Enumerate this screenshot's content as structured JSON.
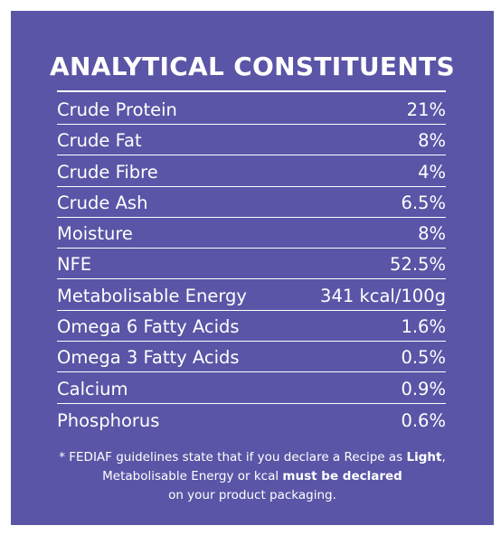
{
  "title": "ANALYTICAL CONSTITUENTS",
  "rows": [
    {
      "label": "Crude Protein",
      "value": "21%"
    },
    {
      "label": "Crude Fat",
      "value": "8%"
    },
    {
      "label": "Crude Fibre",
      "value": "4%"
    },
    {
      "label": "Crude Ash",
      "value": "6.5%"
    },
    {
      "label": "Moisture",
      "value": "8%"
    },
    {
      "label": "NFE",
      "value": "52.5%"
    },
    {
      "label": "Metabolisable Energy",
      "value": "341 kcal/100g"
    },
    {
      "label": "Omega 6 Fatty Acids",
      "value": "1.6%"
    },
    {
      "label": "Omega 3 Fatty Acids",
      "value": "0.5%"
    },
    {
      "label": "Calcium",
      "value": "0.9%"
    },
    {
      "label": "Phosphorus",
      "value": "0.6%"
    }
  ],
  "footnote": {
    "line1_text": "* FEDIAF guidelines state that if you declare a Recipe as ",
    "line1_bold": "Light",
    "line1_end": ",",
    "line2_text": "Metabolisable Energy or kcal ",
    "line2_bold": "must be declared",
    "line3_text": "on your product packaging."
  },
  "colors": {
    "background": "#5a55a6",
    "text": "#ffffff"
  }
}
